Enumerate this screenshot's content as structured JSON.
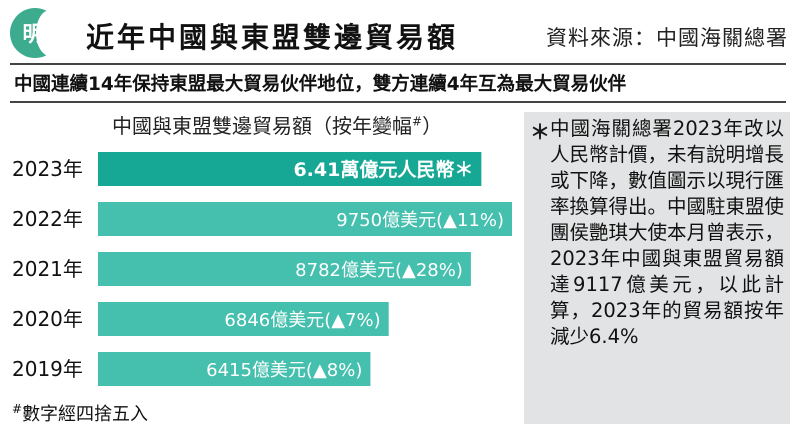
{
  "header": {
    "logo_text": "明",
    "title": "近年中國與東盟雙邊貿易額",
    "source": "資料來源：中國海關總署",
    "subtitle": "中國連續14年保持東盟最大貿易伙伴地位，雙方連續4年互為最大貿易伙伴"
  },
  "colors": {
    "bar_highlight": "#16a894",
    "bar": "#45bfae",
    "logo": "#3dab8e",
    "note_box": "#e2e3e4"
  },
  "chart_data": {
    "type": "bar",
    "orientation": "horizontal",
    "title": "中國與東盟雙邊貿易額（按年變幅",
    "title_mark": "#",
    "title_close": "）",
    "categories": [
      "2023年",
      "2022年",
      "2021年",
      "2020年",
      "2019年"
    ],
    "values": [
      6.41,
      9750,
      8782,
      6846,
      6415
    ],
    "units": [
      "萬億元人民幣",
      "億美元",
      "億美元",
      "億美元",
      "億美元"
    ],
    "data_labels": [
      "6.41萬億元人民幣＊",
      "9750億美元(▲11%)",
      "8782億美元(▲28%)",
      "6846億美元(▲7%)",
      "6415億美元(▲8%)"
    ],
    "change_pct": [
      null,
      11,
      28,
      7,
      8
    ],
    "highlight_index": 0,
    "xlim": [
      0,
      9750
    ],
    "grid": false,
    "legend": "none"
  },
  "footnote": {
    "mark": "#",
    "text": "數字經四捨五入"
  },
  "side_note": {
    "star": "＊",
    "text": "中國海關總署2023年改以人民幣計價，未有說明增長或下降，數值圖示以現行匯率換算得出。中國駐東盟使團侯艷琪大使本月曾表示，2023年中國與東盟貿易額達9117億美元，以此計算，2023年的貿易額按年減少6.4%"
  }
}
